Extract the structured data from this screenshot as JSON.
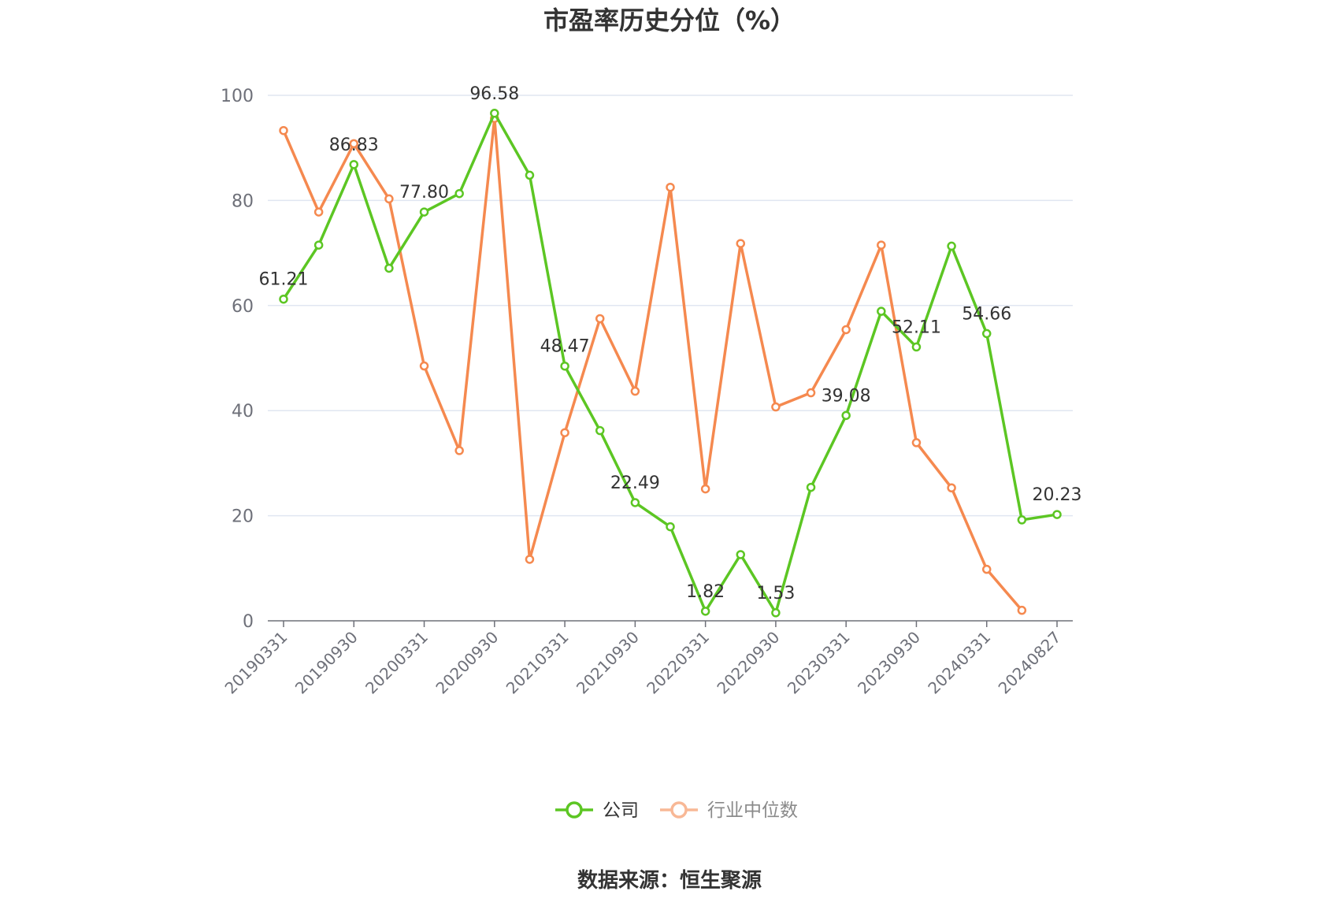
{
  "chart_data": {
    "type": "line",
    "title": "市盈率历史分位（%）",
    "source": "数据来源：恒生聚源",
    "ylim": [
      0,
      100
    ],
    "yticks": [
      0,
      20,
      40,
      60,
      80,
      100
    ],
    "grid": true,
    "legend_position": "bottom",
    "x": [
      "20190331",
      "20190630",
      "20190930",
      "20191231",
      "20200331",
      "20200630",
      "20200930",
      "20201231",
      "20210331",
      "20210630",
      "20210930",
      "20211231",
      "20220331",
      "20220630",
      "20220930",
      "20221231",
      "20230331",
      "20230630",
      "20230930",
      "20231231",
      "20240331",
      "20240630",
      "20240827"
    ],
    "xtick_labels": [
      "20190331",
      "20190930",
      "20200331",
      "20200930",
      "20210331",
      "20210930",
      "20220331",
      "20220930",
      "20230331",
      "20230930",
      "20240331",
      "20240827"
    ],
    "series": [
      {
        "name": "公司",
        "color": "#5cc623",
        "values": [
          61.21,
          71.5,
          86.83,
          67.1,
          77.8,
          81.3,
          96.58,
          84.8,
          48.47,
          36.2,
          22.49,
          17.9,
          1.82,
          12.6,
          1.53,
          25.4,
          39.08,
          58.9,
          52.11,
          71.3,
          54.66,
          19.2,
          20.23
        ],
        "labels": {
          "0": "61.21",
          "2": "86.83",
          "4": "77.80",
          "6": "96.58",
          "8": "48.47",
          "10": "22.49",
          "12": "1.82",
          "14": "1.53",
          "16": "39.08",
          "18": "52.11",
          "20": "54.66",
          "22": "20.23"
        }
      },
      {
        "name": "行业中位数",
        "color": "#f5894f",
        "values": [
          93.3,
          77.8,
          90.8,
          80.3,
          48.5,
          32.4,
          95.6,
          11.7,
          35.8,
          57.5,
          43.7,
          82.5,
          25.1,
          71.8,
          40.7,
          43.4,
          55.4,
          71.5,
          33.9,
          25.3,
          9.8,
          2.0,
          null
        ]
      }
    ]
  }
}
